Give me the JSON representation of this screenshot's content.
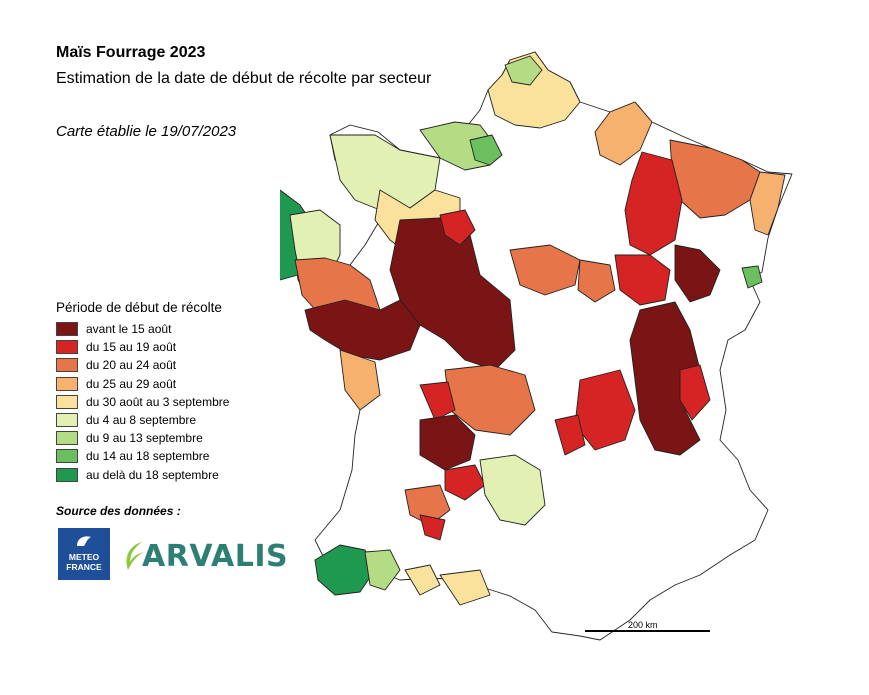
{
  "header": {
    "title": "Maïs Fourrage 2023",
    "subtitle": "Estimation de la date de début de récolte par secteur",
    "date_note": "Carte établie le 19/07/2023"
  },
  "legend": {
    "title": "Période de début de récolte",
    "items": [
      {
        "label": "avant le 15 août",
        "color": "#7b1515"
      },
      {
        "label": "du 15 au 19 août",
        "color": "#d62424"
      },
      {
        "label": "du 20 au 24 août",
        "color": "#e6754a"
      },
      {
        "label": "du 25 au 29 août",
        "color": "#f7b16e"
      },
      {
        "label": "du 30 août au 3 septembre",
        "color": "#fbe29c"
      },
      {
        "label": "du 4 au 8 septembre",
        "color": "#e2f0b3"
      },
      {
        "label": "du 9 au 13 septembre",
        "color": "#b3dc84"
      },
      {
        "label": "du 14 au 18 septembre",
        "color": "#6cbf5e"
      },
      {
        "label": "au delà du 18 septembre",
        "color": "#1f9850"
      }
    ]
  },
  "source": {
    "label": "Source des données :",
    "logo_meteo": "METEO FRANCE",
    "logo_arvalis": "ARVALIS"
  },
  "scale": {
    "label": "200 km"
  }
}
